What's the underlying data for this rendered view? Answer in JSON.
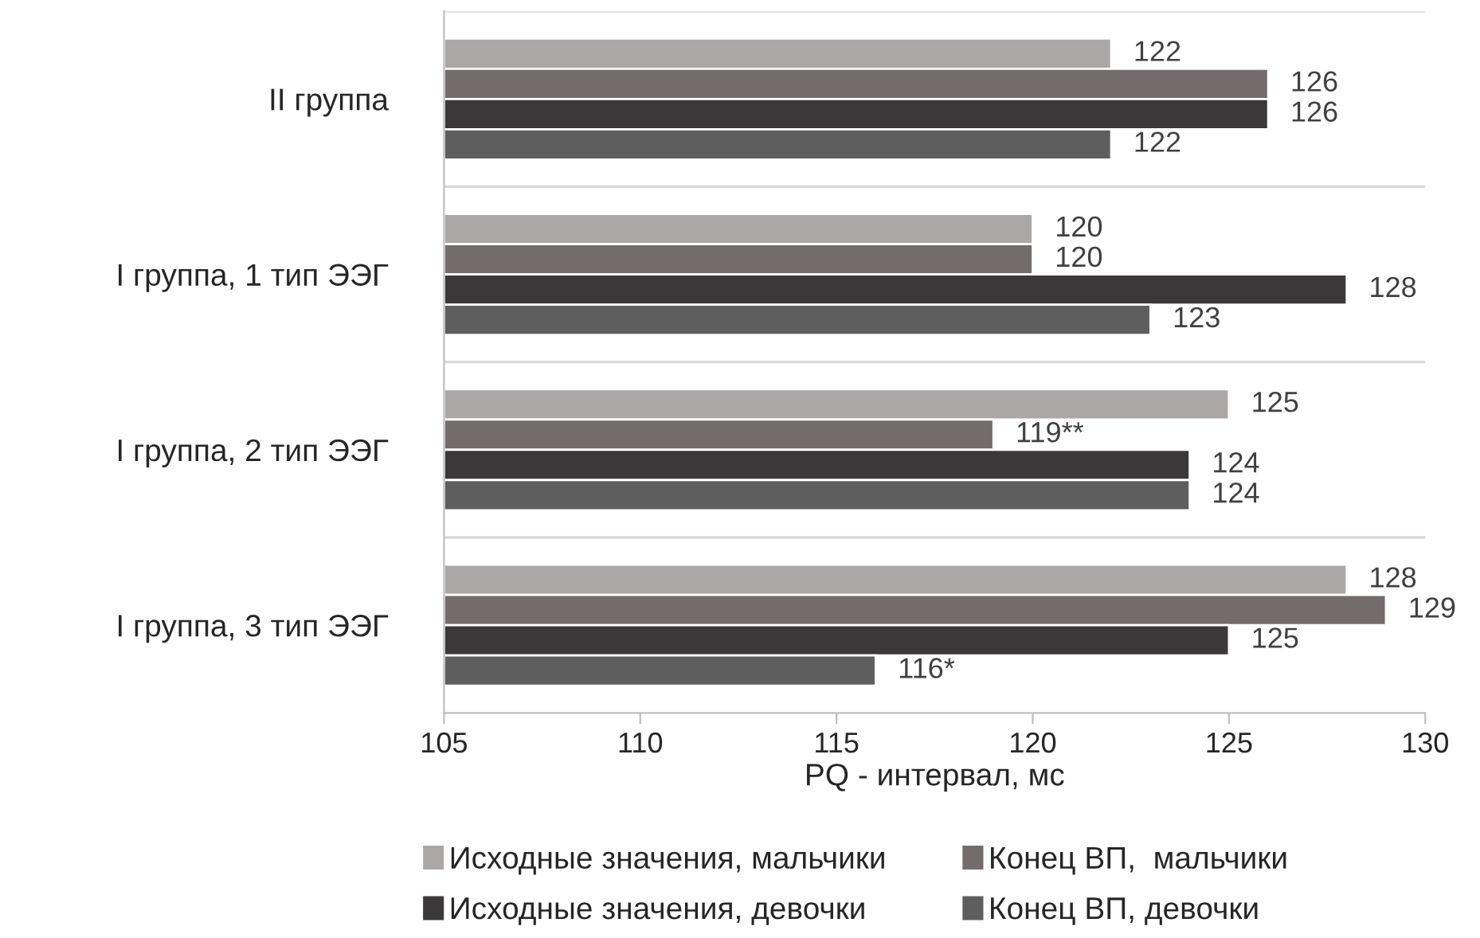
{
  "chart_data": {
    "type": "bar",
    "orientation": "horizontal",
    "xlabel": "PQ - интервал, мс",
    "categories": [
      "II группа",
      "I группа, 1 тип ЭЭГ",
      "I группа, 2 тип ЭЭГ",
      "I группа, 3 тип ЭЭГ"
    ],
    "series": [
      {
        "name": "Исходные значения, мальчики",
        "color": "#aba7a7",
        "values": [
          122,
          120,
          125,
          128
        ],
        "value_labels": [
          "122",
          "120",
          "125",
          "128"
        ]
      },
      {
        "name": "Конец ВП,  мальчики",
        "color": "#746c6c",
        "values": [
          126,
          120,
          119,
          129
        ],
        "value_labels": [
          "126",
          "120",
          "119**",
          "129"
        ]
      },
      {
        "name": "Исходные значения, девочки",
        "color": "#3a3838",
        "values": [
          126,
          128,
          124,
          125
        ],
        "value_labels": [
          "126",
          "128",
          "124",
          "125"
        ]
      },
      {
        "name": "Конец ВП, девочки",
        "color": "#5e5e5e",
        "values": [
          122,
          123,
          124,
          116
        ],
        "value_labels": [
          "122",
          "123",
          "124",
          "116*"
        ]
      }
    ],
    "xlim": [
      105,
      130
    ],
    "xticks": [
      105,
      110,
      115,
      120,
      125,
      130
    ],
    "grid": "y",
    "legend": "bottom"
  }
}
